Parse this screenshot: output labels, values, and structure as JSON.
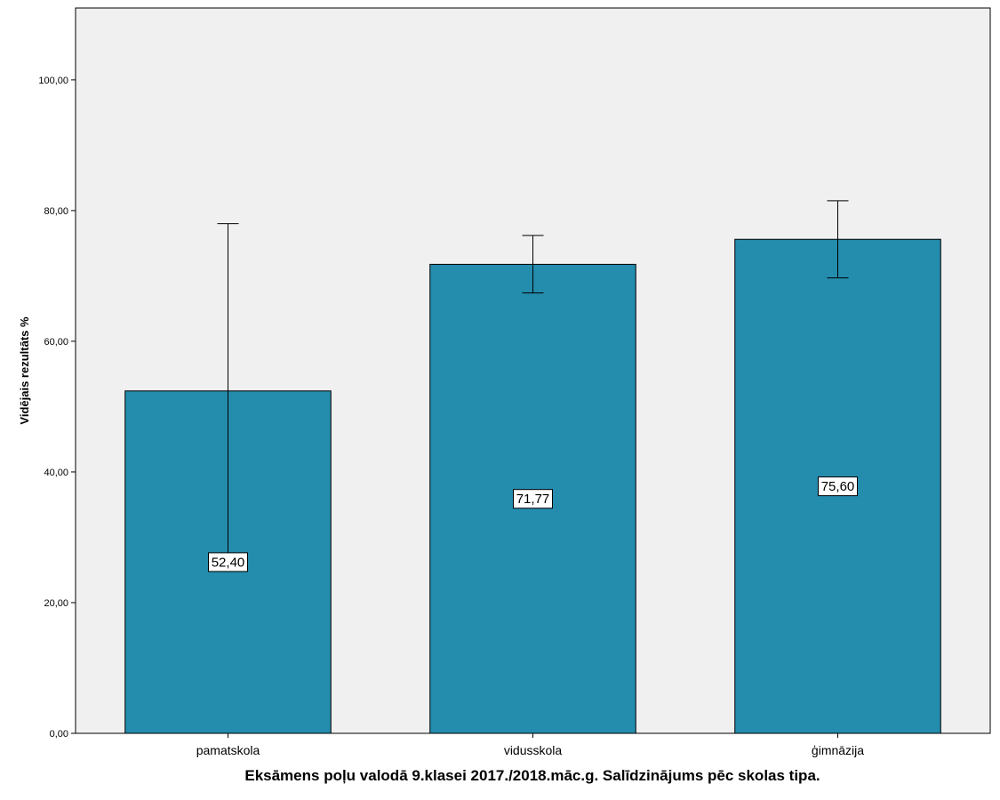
{
  "chart_data": {
    "type": "bar",
    "categories": [
      "pamatskola",
      "vidusskola",
      "ģimnāzija"
    ],
    "values": [
      52.4,
      71.77,
      75.6
    ],
    "value_labels": [
      "52,40",
      "71,77",
      "75,60"
    ],
    "error_bars": [
      {
        "low": 27.0,
        "high": 78.0
      },
      {
        "low": 67.4,
        "high": 76.2
      },
      {
        "low": 69.7,
        "high": 81.5
      }
    ],
    "xlabel": "Eksāmens poļu valodā 9.klasei 2017./2018.māc.g. Salīdzinājums pēc skolas tipa.",
    "ylabel": "Vidējais rezultāts %",
    "ylim": [
      0,
      111
    ],
    "yticks": [
      0,
      20,
      40,
      60,
      80,
      100
    ],
    "ytick_labels": [
      "0,00",
      "20,00",
      "40,00",
      "60,00",
      "80,00",
      "100,00"
    ],
    "grid": false,
    "legend": "none",
    "colors": {
      "bar": "#248cad",
      "plot_background": "#f0f0f0",
      "axis": "#000000"
    }
  }
}
